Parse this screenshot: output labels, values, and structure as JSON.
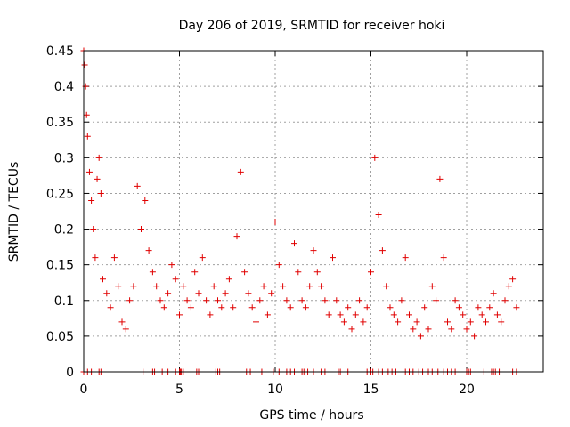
{
  "chart_data": {
    "type": "scatter",
    "title": "Day 206 of 2019, SRMTID for receiver hoki",
    "xlabel": "GPS time / hours",
    "ylabel": "SRMTID / TECUs",
    "xlim": [
      0,
      24
    ],
    "ylim": [
      0,
      0.45
    ],
    "x_ticks": [
      0,
      5,
      10,
      15,
      20
    ],
    "y_ticks": [
      0,
      0.05,
      0.1,
      0.15,
      0.2,
      0.25,
      0.3,
      0.35,
      0.4,
      0.45
    ],
    "grid": true,
    "marker": "+",
    "color": "#e00000",
    "series": [
      {
        "name": "SRMTID",
        "x": [
          0.0,
          0.05,
          0.1,
          0.15,
          0.2,
          0.3,
          0.4,
          0.5,
          0.6,
          0.7,
          0.8,
          0.9,
          1.0,
          1.2,
          1.4,
          1.6,
          1.8,
          2.0,
          2.2,
          2.4,
          2.6,
          2.8,
          3.0,
          3.2,
          3.4,
          3.6,
          3.8,
          4.0,
          4.2,
          4.4,
          4.6,
          4.8,
          5.0,
          5.2,
          5.4,
          5.6,
          5.8,
          6.0,
          6.2,
          6.4,
          6.6,
          6.8,
          7.0,
          7.2,
          7.4,
          7.6,
          7.8,
          8.0,
          8.2,
          8.4,
          8.6,
          8.8,
          9.0,
          9.2,
          9.4,
          9.6,
          9.8,
          10.0,
          10.2,
          10.4,
          10.6,
          10.8,
          11.0,
          11.2,
          11.4,
          11.6,
          11.8,
          12.0,
          12.2,
          12.4,
          12.6,
          12.8,
          13.0,
          13.2,
          13.4,
          13.6,
          13.8,
          14.0,
          14.2,
          14.4,
          14.6,
          14.8,
          15.0,
          15.2,
          15.4,
          15.6,
          15.8,
          16.0,
          16.2,
          16.4,
          16.6,
          16.8,
          17.0,
          17.2,
          17.4,
          17.6,
          17.8,
          18.0,
          18.2,
          18.4,
          18.6,
          18.8,
          19.0,
          19.2,
          19.4,
          19.6,
          19.8,
          20.0,
          20.2,
          20.4,
          20.6,
          20.8,
          21.0,
          21.2,
          21.4,
          21.6,
          21.8,
          22.0,
          22.2,
          22.4,
          22.6
        ],
        "y": [
          0.45,
          0.43,
          0.4,
          0.36,
          0.33,
          0.28,
          0.24,
          0.2,
          0.16,
          0.27,
          0.3,
          0.25,
          0.13,
          0.11,
          0.09,
          0.16,
          0.12,
          0.07,
          0.06,
          0.1,
          0.12,
          0.26,
          0.2,
          0.24,
          0.17,
          0.14,
          0.12,
          0.1,
          0.09,
          0.11,
          0.15,
          0.13,
          0.08,
          0.12,
          0.1,
          0.09,
          0.14,
          0.11,
          0.16,
          0.1,
          0.08,
          0.12,
          0.1,
          0.09,
          0.11,
          0.13,
          0.09,
          0.19,
          0.28,
          0.14,
          0.11,
          0.09,
          0.07,
          0.1,
          0.12,
          0.08,
          0.11,
          0.21,
          0.15,
          0.12,
          0.1,
          0.09,
          0.18,
          0.14,
          0.1,
          0.09,
          0.12,
          0.17,
          0.14,
          0.12,
          0.1,
          0.08,
          0.16,
          0.1,
          0.08,
          0.07,
          0.09,
          0.06,
          0.08,
          0.1,
          0.07,
          0.09,
          0.14,
          0.3,
          0.22,
          0.17,
          0.12,
          0.09,
          0.08,
          0.07,
          0.1,
          0.16,
          0.08,
          0.06,
          0.07,
          0.05,
          0.09,
          0.06,
          0.12,
          0.1,
          0.27,
          0.16,
          0.07,
          0.06,
          0.1,
          0.09,
          0.08,
          0.06,
          0.07,
          0.05,
          0.09,
          0.08,
          0.07,
          0.09,
          0.11,
          0.08,
          0.07,
          0.1,
          0.12,
          0.13,
          0.09
        ]
      }
    ],
    "zero_points_x": [
      0.0,
      0.2,
      0.4,
      0.8,
      0.9,
      3.1,
      3.6,
      3.7,
      4.1,
      4.4,
      4.8,
      5.0,
      5.05,
      5.1,
      5.2,
      5.9,
      6.0,
      6.9,
      7.0,
      7.1,
      8.5,
      8.7,
      9.3,
      9.9,
      10.2,
      10.6,
      10.8,
      11.0,
      11.4,
      11.5,
      11.7,
      12.0,
      12.4,
      12.6,
      13.3,
      13.4,
      13.8,
      14.8,
      15.0,
      15.1,
      15.4,
      15.6,
      15.9,
      16.1,
      16.3,
      16.8,
      17.0,
      17.2,
      17.5,
      17.7,
      18.0,
      18.2,
      18.5,
      18.8,
      19.0,
      19.2,
      19.4,
      20.0,
      20.1,
      20.2,
      20.9,
      21.3,
      21.4,
      21.5,
      21.7,
      22.4,
      22.6
    ]
  }
}
